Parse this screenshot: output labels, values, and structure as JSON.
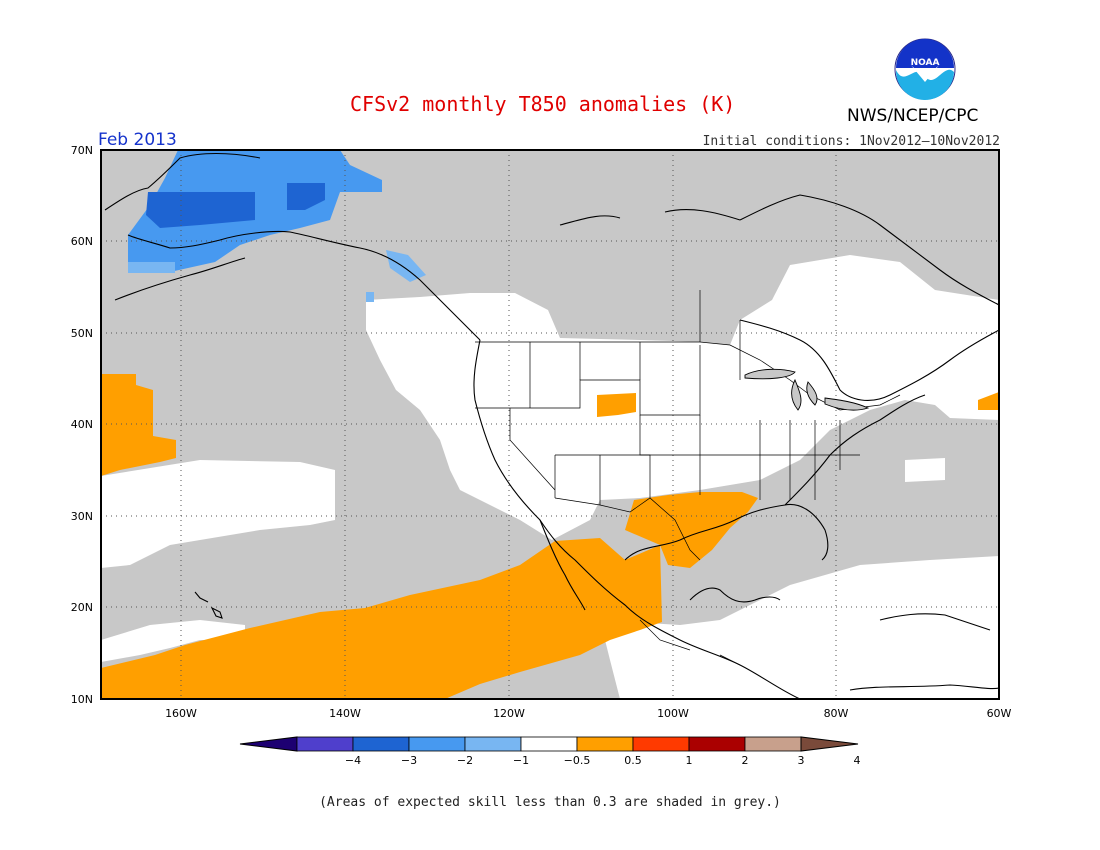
{
  "title": "CFSv2 monthly T850 anomalies (K)",
  "agency": "NWS/NCEP/CPC",
  "logo_text": "NOAA",
  "valid_month": "Feb 2013",
  "initial_conditions": "Initial conditions: 1Nov2012–10Nov2012",
  "footnote": "(Areas of expected skill less than 0.3 are shaded in grey.)",
  "colors": {
    "skill_grey": "#c8c8c8",
    "neutral": "#ffffff",
    "pos_0_5_1": "#ff9f00",
    "neg_1_2": "#4799f0",
    "neg_2_3": "#1e64d2",
    "neg_0_5_1": "#78b6f2"
  },
  "map": {
    "projection": "lat-lon",
    "lon_range": [
      -171,
      -60
    ],
    "lat_range": [
      10,
      70
    ],
    "lat_labels": [
      "70N",
      "60N",
      "50N",
      "40N",
      "30N",
      "20N",
      "10N"
    ],
    "lon_labels": [
      "160W",
      "140W",
      "120W",
      "100W",
      "80W",
      "60W"
    ]
  },
  "colorbar": {
    "labels": [
      "−4",
      "−3",
      "−2",
      "−1",
      "−0.5",
      "0.5",
      "1",
      "2",
      "3",
      "4"
    ],
    "colors": [
      "#1d0072",
      "#4f3fcc",
      "#1e64d2",
      "#4799f0",
      "#78b6f2",
      "#ffffff",
      "#ff9f00",
      "#ff3a00",
      "#aa0000",
      "#c8a08c",
      "#7a4a3a"
    ]
  }
}
